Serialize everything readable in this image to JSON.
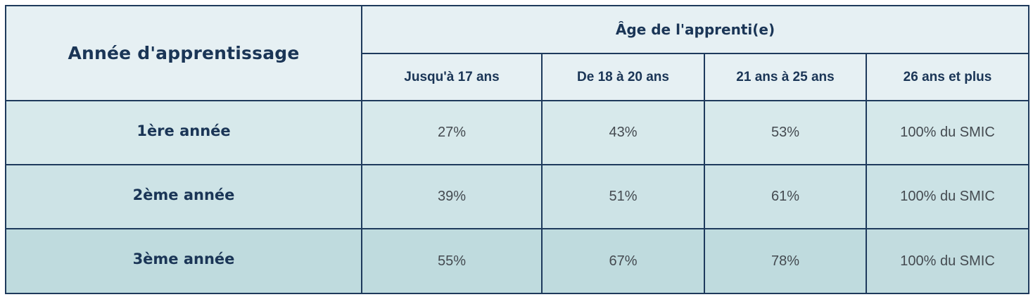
{
  "table": {
    "header": {
      "row_label_header": "Année d'apprentissage",
      "age_group_header": "Âge de l'apprenti(e)",
      "age_columns": [
        "Jusqu'à 17 ans",
        "De 18 à 20 ans",
        "21 ans à 25 ans",
        "26 ans et plus"
      ]
    },
    "rows": [
      {
        "label": "1ère année",
        "values": [
          "27%",
          "43%",
          "53%",
          "100% du SMIC"
        ]
      },
      {
        "label": "2ème année",
        "values": [
          "39%",
          "51%",
          "61%",
          "100% du SMIC"
        ]
      },
      {
        "label": "3ème année",
        "values": [
          "55%",
          "67%",
          "78%",
          "100% du SMIC"
        ]
      }
    ]
  },
  "colors": {
    "border": "#1e3a5c",
    "header_bg": "#e6f0f3",
    "row1_bg": "#d7e9eb",
    "row2_bg": "#cde3e6",
    "row3_bg": "#bfdbde",
    "heading_text": "#1a3556",
    "value_text": "#444a50"
  }
}
